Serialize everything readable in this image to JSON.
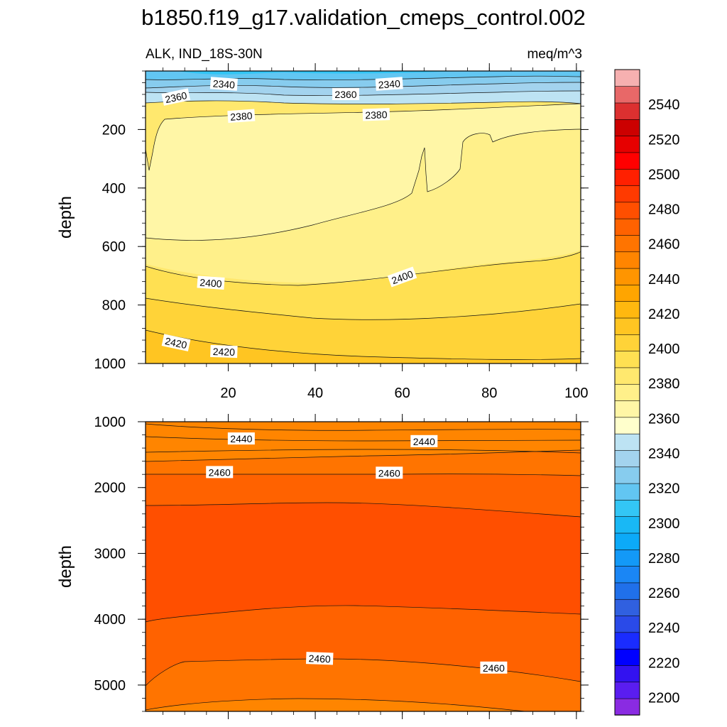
{
  "chart_data": {
    "type": "contour",
    "title": "b1850.f19_g17.validation_cmeps_control.002",
    "left_subtitle": "ALK, IND_18S-30N",
    "right_subtitle": "meq/m^3",
    "ylabel": "depth",
    "x_range": [
      1,
      101
    ],
    "x_ticks": [
      20,
      40,
      60,
      80,
      100
    ],
    "x_tick_labels": [
      "20",
      "40",
      "60",
      "80",
      "100"
    ],
    "panels": [
      {
        "name": "upper",
        "ylim": [
          0,
          1000
        ],
        "y_ticks": [
          200,
          400,
          600,
          800,
          1000
        ],
        "y_tick_labels": [
          "200",
          "400",
          "600",
          "800",
          "1000"
        ],
        "contour_labels": [
          {
            "text": "2340",
            "x": 19,
            "y": 45,
            "rot": 4
          },
          {
            "text": "2360",
            "x": 8,
            "y": 90,
            "rot": -12
          },
          {
            "text": "2360",
            "x": 47,
            "y": 80,
            "rot": 0
          },
          {
            "text": "2340",
            "x": 57,
            "y": 45,
            "rot": -4
          },
          {
            "text": "2380",
            "x": 23,
            "y": 155,
            "rot": -4
          },
          {
            "text": "2380",
            "x": 54,
            "y": 150,
            "rot": -2
          },
          {
            "text": "2400",
            "x": 16,
            "y": 725,
            "rot": 4
          },
          {
            "text": "2400",
            "x": 60,
            "y": 705,
            "rot": -20
          },
          {
            "text": "2420",
            "x": 8,
            "y": 930,
            "rot": 12
          },
          {
            "text": "2420",
            "x": 19,
            "y": 960,
            "rot": 2
          }
        ]
      },
      {
        "name": "lower",
        "ylim": [
          1000,
          5400
        ],
        "y_ticks": [
          1000,
          2000,
          3000,
          4000,
          5000
        ],
        "y_tick_labels": [
          "1000",
          "2000",
          "3000",
          "4000",
          "5000"
        ],
        "contour_labels": [
          {
            "text": "2440",
            "x": 23,
            "y": 1260,
            "rot": 0
          },
          {
            "text": "2440",
            "x": 65,
            "y": 1300,
            "rot": 0
          },
          {
            "text": "2460",
            "x": 18,
            "y": 1770,
            "rot": 0
          },
          {
            "text": "2460",
            "x": 57,
            "y": 1780,
            "rot": 0
          },
          {
            "text": "2460",
            "x": 41,
            "y": 4600,
            "rot": 2
          },
          {
            "text": "2460",
            "x": 81,
            "y": 4740,
            "rot": 0
          }
        ]
      }
    ],
    "colorbar": {
      "min": 2190,
      "max": 2560,
      "step": 10,
      "labels": [
        "2200",
        "2220",
        "2240",
        "2260",
        "2280",
        "2300",
        "2320",
        "2340",
        "2360",
        "2380",
        "2400",
        "2420",
        "2440",
        "2460",
        "2480",
        "2500",
        "2520",
        "2540"
      ],
      "colors": [
        "#8a2be2",
        "#5a1df0",
        "#3312f0",
        "#0000ff",
        "#1a2cff",
        "#2a4ae8",
        "#3060e0",
        "#2070ea",
        "#1a86f5",
        "#1399f7",
        "#0caaf8",
        "#19b8f5",
        "#33c6f5",
        "#62c6f2",
        "#87ccee",
        "#a3d3ee",
        "#bde3f3",
        "#ffffcc",
        "#fff6a6",
        "#fff08a",
        "#ffe86e",
        "#ffe052",
        "#ffd338",
        "#ffc522",
        "#ffb80f",
        "#ffa500",
        "#ff9500",
        "#ff8500",
        "#ff7400",
        "#ff6200",
        "#ff4f00",
        "#ff3a00",
        "#ff2000",
        "#ff0000",
        "#e60000",
        "#cc0000",
        "#dc3030",
        "#e86868",
        "#f6b0b0"
      ]
    }
  }
}
